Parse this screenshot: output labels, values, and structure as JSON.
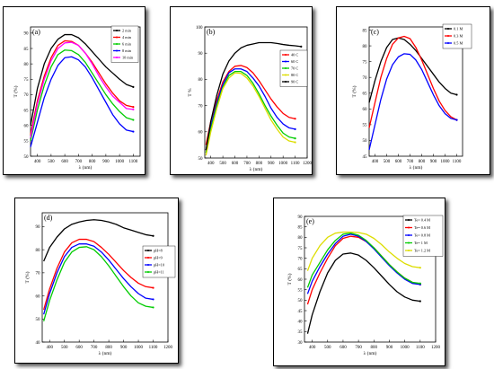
{
  "chart_data": [
    {
      "panel": "a",
      "type": "line",
      "xlabel": "λ (nm)",
      "ylabel": "T (%)",
      "xlim": [
        350,
        1150
      ],
      "ylim": [
        50,
        92
      ],
      "xticks": [
        400,
        500,
        600,
        700,
        800,
        900,
        1000,
        1100
      ],
      "yticks": [
        50,
        55,
        60,
        65,
        70,
        75,
        80,
        85,
        90
      ],
      "legend_position": "top-right",
      "series": [
        {
          "name": "2 min",
          "color": "#000000",
          "x": [
            350,
            400,
            450,
            500,
            550,
            600,
            650,
            700,
            750,
            800,
            850,
            900,
            950,
            1000,
            1050,
            1100
          ],
          "y": [
            60,
            72,
            80,
            85,
            88,
            89.5,
            89.5,
            88.5,
            86.5,
            84,
            81.5,
            79,
            77,
            75,
            73.3,
            72.5
          ]
        },
        {
          "name": "4 min",
          "color": "#ff0000",
          "x": [
            350,
            400,
            450,
            500,
            550,
            600,
            650,
            700,
            750,
            800,
            850,
            900,
            950,
            1000,
            1050,
            1100
          ],
          "y": [
            57,
            68,
            76,
            82,
            86,
            87.5,
            87.3,
            86,
            83.5,
            80.5,
            77,
            73.5,
            70.5,
            68,
            66.5,
            66
          ]
        },
        {
          "name": "6 min",
          "color": "#00cc00",
          "x": [
            350,
            400,
            450,
            500,
            550,
            600,
            650,
            700,
            750,
            800,
            850,
            900,
            950,
            1000,
            1050,
            1100
          ],
          "y": [
            55,
            65,
            73,
            79,
            83,
            84.5,
            84.3,
            83,
            80.5,
            77,
            73.5,
            70,
            67,
            64.5,
            62.5,
            61.8
          ]
        },
        {
          "name": "8 min",
          "color": "#0000ff",
          "x": [
            350,
            400,
            450,
            500,
            550,
            600,
            650,
            700,
            750,
            800,
            850,
            900,
            950,
            1000,
            1050,
            1100
          ],
          "y": [
            53,
            61,
            69,
            75,
            79.5,
            82,
            82.3,
            81.3,
            79,
            75.5,
            71.5,
            67.5,
            63.5,
            60.5,
            58.5,
            58
          ]
        },
        {
          "name": "10 min",
          "color": "#ff00ff",
          "x": [
            350,
            400,
            450,
            500,
            550,
            600,
            650,
            700,
            750,
            800,
            850,
            900,
            950,
            1000,
            1050,
            1100
          ],
          "y": [
            56,
            67,
            75,
            81,
            85,
            86.8,
            87,
            86,
            83.5,
            80,
            76,
            72.5,
            69.5,
            67.5,
            65.5,
            65.2
          ]
        }
      ]
    },
    {
      "panel": "b",
      "type": "line",
      "xlabel": "λ (nm)",
      "ylabel": "T %",
      "xlim": [
        350,
        1200
      ],
      "ylim": [
        50,
        100
      ],
      "xticks": [
        400,
        500,
        600,
        700,
        800,
        900,
        1000,
        1100,
        1200
      ],
      "yticks": [
        50,
        60,
        70,
        80,
        90,
        100
      ],
      "legend_position": "top-right",
      "series": [
        {
          "name": "40 C",
          "color": "#ff0000",
          "x": [
            360,
            400,
            450,
            500,
            550,
            600,
            650,
            700,
            750,
            800,
            850,
            900,
            950,
            1000,
            1050,
            1100
          ],
          "y": [
            55,
            64,
            72,
            79,
            83,
            85,
            85.3,
            84.5,
            82.5,
            79.5,
            76,
            72.5,
            69.5,
            67,
            65.5,
            65
          ]
        },
        {
          "name": "60 C",
          "color": "#0000ff",
          "x": [
            360,
            400,
            450,
            500,
            550,
            600,
            650,
            700,
            750,
            800,
            850,
            900,
            950,
            1000,
            1050,
            1100
          ],
          "y": [
            53,
            62,
            71,
            78,
            82.5,
            84,
            84,
            83,
            80.5,
            77.5,
            73.5,
            69,
            65.5,
            63,
            61.5,
            61
          ]
        },
        {
          "name": "70 C",
          "color": "#00cc00",
          "x": [
            360,
            400,
            450,
            500,
            550,
            600,
            650,
            700,
            750,
            800,
            850,
            900,
            950,
            1000,
            1050,
            1100
          ],
          "y": [
            52,
            61,
            70,
            77,
            81.5,
            83,
            83,
            81.5,
            78.5,
            74.5,
            70,
            66,
            62.5,
            59.5,
            58,
            57.5
          ]
        },
        {
          "name": "80 C",
          "color": "#dddd00",
          "x": [
            360,
            400,
            450,
            500,
            550,
            600,
            650,
            700,
            750,
            800,
            850,
            900,
            950,
            1000,
            1050,
            1100
          ],
          "y": [
            51,
            60,
            69,
            76.5,
            80.5,
            82.5,
            82.3,
            80.5,
            77.5,
            73.5,
            69,
            64.5,
            61,
            58,
            56.5,
            56
          ]
        },
        {
          "name": "90 C",
          "color": "#000000",
          "x": [
            360,
            400,
            450,
            500,
            550,
            600,
            650,
            700,
            750,
            800,
            850,
            900,
            950,
            1000,
            1050,
            1100,
            1150
          ],
          "y": [
            53,
            64,
            74,
            82,
            87,
            90,
            92,
            93,
            93.5,
            94,
            94,
            94,
            93.7,
            93.3,
            93,
            92.8,
            92.5
          ]
        }
      ]
    },
    {
      "panel": "c",
      "type": "line",
      "xlabel": "λ (nm)",
      "ylabel": "T (%)",
      "xlim": [
        350,
        1150
      ],
      "ylim": [
        45,
        86
      ],
      "xticks": [
        400,
        500,
        600,
        700,
        800,
        900,
        1000,
        1100
      ],
      "yticks": [
        45,
        50,
        55,
        60,
        65,
        70,
        75,
        80,
        85
      ],
      "legend_position": "top-right",
      "series": [
        {
          "name": "0.1 M",
          "color": "#000000",
          "x": [
            350,
            400,
            450,
            500,
            550,
            600,
            650,
            700,
            750,
            800,
            850,
            900,
            950,
            1000,
            1050,
            1100
          ],
          "y": [
            62,
            69,
            75,
            79.5,
            82,
            82.5,
            82,
            80.5,
            78.5,
            76,
            73.5,
            71,
            68.5,
            66.5,
            65,
            64.5
          ]
        },
        {
          "name": "0.3 M",
          "color": "#ff0000",
          "x": [
            350,
            400,
            450,
            500,
            550,
            600,
            650,
            700,
            750,
            800,
            850,
            900,
            950,
            1000,
            1050,
            1100
          ],
          "y": [
            54,
            62,
            70,
            76,
            80.5,
            82.5,
            83,
            82.3,
            79.5,
            75.5,
            71,
            66.5,
            62.5,
            59.5,
            57.5,
            56.5
          ]
        },
        {
          "name": "0.5 M",
          "color": "#0000ff",
          "x": [
            350,
            400,
            450,
            500,
            550,
            600,
            650,
            700,
            750,
            800,
            850,
            900,
            950,
            1000,
            1050,
            1100
          ],
          "y": [
            47,
            55,
            63,
            69.5,
            74,
            76.5,
            77.5,
            77.3,
            75.5,
            72.5,
            68.5,
            64.5,
            61,
            58.5,
            57,
            56.5
          ]
        }
      ]
    },
    {
      "panel": "d",
      "type": "line",
      "xlabel": "λ (nm)",
      "ylabel": "T (%)",
      "xlim": [
        350,
        1200
      ],
      "ylim": [
        40,
        96
      ],
      "xticks": [
        400,
        500,
        600,
        700,
        800,
        900,
        1000,
        1100,
        1200
      ],
      "yticks": [
        40,
        50,
        60,
        70,
        80,
        90
      ],
      "legend_position": "middle-right",
      "series": [
        {
          "name": "pH=8",
          "color": "#000000",
          "x": [
            360,
            400,
            450,
            500,
            550,
            600,
            650,
            700,
            750,
            800,
            850,
            900,
            950,
            1000,
            1050,
            1100
          ],
          "y": [
            75,
            81,
            85.5,
            89,
            91,
            92,
            92.7,
            93,
            92.7,
            92,
            91,
            89.5,
            88.5,
            87.5,
            86.5,
            86
          ]
        },
        {
          "name": "pH=9",
          "color": "#ff0000",
          "x": [
            360,
            400,
            450,
            500,
            550,
            600,
            650,
            700,
            750,
            800,
            850,
            900,
            950,
            1000,
            1050,
            1100
          ],
          "y": [
            54,
            63,
            72,
            79,
            83,
            84.5,
            84.5,
            83.5,
            81,
            78,
            74.5,
            71,
            68,
            65.5,
            64,
            63.5
          ]
        },
        {
          "name": "pH=10",
          "color": "#0000ff",
          "x": [
            360,
            400,
            450,
            500,
            550,
            600,
            650,
            700,
            750,
            800,
            850,
            900,
            950,
            1000,
            1050,
            1100
          ],
          "y": [
            52,
            61,
            70,
            77,
            81,
            82.5,
            82.5,
            81.5,
            79,
            75.5,
            71.5,
            67.5,
            64,
            61,
            59,
            58.5
          ]
        },
        {
          "name": "pH=11",
          "color": "#00cc00",
          "x": [
            360,
            400,
            450,
            500,
            550,
            600,
            650,
            700,
            750,
            800,
            850,
            900,
            950,
            1000,
            1050,
            1100
          ],
          "y": [
            49,
            58,
            67,
            74.5,
            79,
            81,
            81.3,
            80,
            77,
            73,
            68.5,
            64,
            60,
            57,
            55.5,
            55
          ]
        }
      ]
    },
    {
      "panel": "e",
      "type": "line",
      "xlabel": "λ (nm)",
      "ylabel": "T (%)",
      "xlim": [
        350,
        1200
      ],
      "ylim": [
        30,
        90
      ],
      "xticks": [
        400,
        500,
        600,
        700,
        800,
        900,
        1000,
        1100,
        1200
      ],
      "yticks": [
        30,
        35,
        40,
        45,
        50,
        55,
        60,
        65,
        70,
        75,
        80,
        85,
        90
      ],
      "legend_position": "top-right",
      "series": [
        {
          "name": "Te= 0.4 M",
          "color": "#000000",
          "x": [
            370,
            400,
            450,
            500,
            550,
            600,
            650,
            700,
            750,
            800,
            850,
            900,
            950,
            1000,
            1050,
            1100
          ],
          "y": [
            34,
            43,
            54,
            63,
            69,
            72,
            72.5,
            71.5,
            69,
            65.5,
            61.5,
            57.5,
            54,
            51.5,
            50,
            49.5
          ]
        },
        {
          "name": "Te= 0.6 M",
          "color": "#ff0000",
          "x": [
            370,
            400,
            450,
            500,
            550,
            600,
            650,
            700,
            750,
            800,
            850,
            900,
            950,
            1000,
            1050,
            1100
          ],
          "y": [
            48,
            55,
            63,
            70,
            76,
            79.5,
            80.5,
            80,
            78,
            75,
            71,
            67,
            63.5,
            60.5,
            58.5,
            57.5
          ]
        },
        {
          "name": "Te= 0.8 M",
          "color": "#0000ff",
          "x": [
            370,
            400,
            450,
            500,
            550,
            600,
            650,
            700,
            750,
            800,
            850,
            900,
            950,
            1000,
            1050,
            1100
          ],
          "y": [
            53,
            59,
            66,
            72,
            77,
            80.5,
            81.5,
            80.5,
            78,
            74.5,
            70.5,
            66.5,
            63,
            60,
            58,
            57.5
          ]
        },
        {
          "name": "Te= 1 M",
          "color": "#00cc00",
          "x": [
            370,
            400,
            450,
            500,
            550,
            600,
            650,
            700,
            750,
            800,
            850,
            900,
            950,
            1000,
            1050,
            1100
          ],
          "y": [
            56,
            62,
            68,
            74,
            78.5,
            81.5,
            82,
            81,
            78.5,
            75,
            71,
            67,
            63.5,
            60.5,
            58.5,
            58
          ]
        },
        {
          "name": "Te= 1.2 M",
          "color": "#dddd00",
          "x": [
            370,
            400,
            450,
            500,
            550,
            600,
            650,
            700,
            750,
            800,
            850,
            900,
            950,
            1000,
            1050,
            1100
          ],
          "y": [
            64,
            70,
            76,
            80,
            82,
            82.5,
            82.5,
            82.3,
            81.5,
            79.5,
            76.5,
            73,
            70,
            67.5,
            66,
            65.5
          ]
        }
      ]
    }
  ],
  "panel_labels": [
    "(a)",
    "(b)",
    "(c)",
    "(d)",
    "(e)"
  ]
}
